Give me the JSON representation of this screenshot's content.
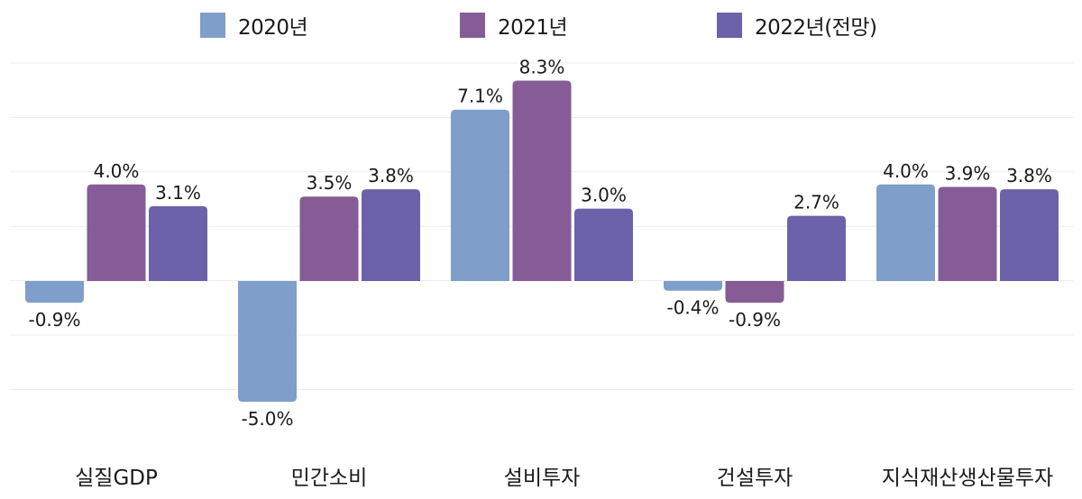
{
  "chart_data": {
    "type": "bar",
    "title": "",
    "xlabel": "",
    "ylabel": "",
    "categories": [
      "실질GDP",
      "민간소비",
      "설비투자",
      "건설투자",
      "지식재산생산물투자"
    ],
    "series": [
      {
        "name": "2020년",
        "color": "#7f9ec9",
        "values": [
          -0.9,
          -5.0,
          7.1,
          -0.4,
          4.0
        ],
        "labels": [
          "-0.9%",
          "-5.0%",
          "7.1%",
          "-0.4%",
          "4.0%"
        ]
      },
      {
        "name": "2021년",
        "color": "#855c96",
        "values": [
          4.0,
          3.5,
          8.3,
          -0.9,
          3.9
        ],
        "labels": [
          "4.0%",
          "3.5%",
          "8.3%",
          "-0.9%",
          "3.9%"
        ]
      },
      {
        "name": "2022년(전망)",
        "color": "#6b62aa",
        "values": [
          3.1,
          3.8,
          3.0,
          2.7,
          3.8
        ],
        "labels": [
          "3.1%",
          "3.8%",
          "3.0%",
          "2.7%",
          "3.8%"
        ]
      }
    ],
    "ylim": [
      -5.0,
      9.0
    ],
    "grid": true,
    "gridline_count": 7,
    "legend_position": "top-center"
  }
}
